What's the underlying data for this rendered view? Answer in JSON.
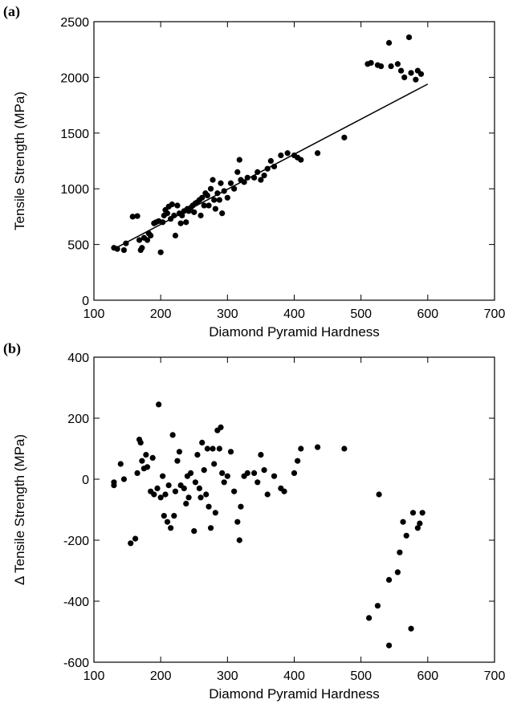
{
  "chart_data": [
    {
      "type": "scatter",
      "panel_label": "(a)",
      "xlabel": "Diamond Pyramid Hardness",
      "ylabel": "Tensile Strength (MPa)",
      "xlim": [
        100,
        700
      ],
      "xticks": [
        100,
        200,
        300,
        400,
        500,
        600,
        700
      ],
      "ylim": [
        0,
        2500
      ],
      "yticks": [
        0,
        500,
        1000,
        1500,
        2000,
        2500
      ],
      "series": [
        {
          "color": "#000000",
          "x": [
            130,
            135,
            145,
            148,
            158,
            165,
            168,
            170,
            172,
            175,
            180,
            182,
            185,
            190,
            193,
            197,
            200,
            203,
            205,
            207,
            210,
            212,
            215,
            217,
            220,
            222,
            225,
            228,
            230,
            232,
            235,
            238,
            240,
            242,
            245,
            248,
            250,
            252,
            255,
            258,
            260,
            262,
            265,
            267,
            270,
            272,
            275,
            278,
            280,
            282,
            285,
            288,
            290,
            292,
            295,
            300,
            305,
            310,
            315,
            318,
            320,
            325,
            330,
            340,
            345,
            350,
            355,
            360,
            365,
            370,
            380,
            390,
            400,
            405,
            410,
            435,
            475,
            510,
            515,
            525,
            530,
            542,
            545,
            555,
            560,
            565,
            572,
            575,
            582,
            585,
            590
          ],
          "values": [
            470,
            460,
            450,
            510,
            750,
            755,
            540,
            450,
            470,
            560,
            540,
            600,
            580,
            690,
            700,
            710,
            430,
            700,
            760,
            810,
            780,
            840,
            730,
            860,
            760,
            580,
            850,
            780,
            690,
            760,
            800,
            700,
            820,
            800,
            830,
            850,
            790,
            870,
            880,
            900,
            760,
            920,
            850,
            960,
            940,
            850,
            1000,
            1080,
            900,
            820,
            960,
            900,
            1050,
            780,
            980,
            920,
            1050,
            1000,
            1150,
            1260,
            1080,
            1060,
            1100,
            1100,
            1150,
            1080,
            1120,
            1180,
            1250,
            1200,
            1300,
            1320,
            1300,
            1280,
            1260,
            1320,
            1460,
            2120,
            2130,
            2110,
            2100,
            2310,
            2100,
            2120,
            2060,
            2000,
            2360,
            2040,
            1980,
            2060,
            2030
          ]
        }
      ],
      "fit_line": {
        "color": "#000000",
        "x": [
          130,
          600
        ],
        "values": [
          460,
          1940
        ]
      }
    },
    {
      "type": "scatter",
      "panel_label": "(b)",
      "xlabel": "Diamond Pyramid Hardness",
      "ylabel": "Δ Tensile Strength (MPa)",
      "xlim": [
        100,
        700
      ],
      "xticks": [
        100,
        200,
        300,
        400,
        500,
        600,
        700
      ],
      "ylim": [
        -600,
        400
      ],
      "yticks": [
        -600,
        -400,
        -200,
        0,
        200,
        400
      ],
      "series": [
        {
          "color": "#000000",
          "x": [
            130,
            130,
            140,
            145,
            155,
            162,
            165,
            168,
            170,
            172,
            175,
            178,
            180,
            185,
            188,
            190,
            195,
            197,
            200,
            203,
            205,
            207,
            210,
            212,
            215,
            218,
            220,
            222,
            225,
            228,
            230,
            235,
            238,
            240,
            242,
            245,
            250,
            252,
            255,
            258,
            260,
            262,
            265,
            268,
            270,
            272,
            275,
            278,
            280,
            282,
            285,
            288,
            290,
            292,
            295,
            300,
            305,
            310,
            315,
            318,
            320,
            325,
            330,
            340,
            345,
            350,
            355,
            360,
            370,
            380,
            385,
            400,
            405,
            410,
            435,
            475,
            512,
            525,
            527,
            542,
            542,
            555,
            558,
            563,
            568,
            575,
            578,
            585,
            588,
            592
          ],
          "values": [
            -20,
            -10,
            50,
            0,
            -210,
            -195,
            20,
            130,
            120,
            60,
            35,
            80,
            40,
            -40,
            70,
            -50,
            -30,
            245,
            -60,
            10,
            -120,
            -50,
            -140,
            -20,
            -160,
            145,
            -120,
            -40,
            60,
            90,
            -20,
            -30,
            -80,
            10,
            -60,
            20,
            -170,
            -10,
            80,
            -30,
            -60,
            120,
            30,
            -50,
            100,
            -90,
            -160,
            100,
            50,
            -110,
            160,
            100,
            170,
            20,
            -10,
            10,
            90,
            -40,
            -140,
            -200,
            -90,
            10,
            20,
            20,
            -10,
            80,
            30,
            -50,
            10,
            -30,
            -40,
            20,
            60,
            100,
            105,
            100,
            -455,
            -415,
            -50,
            -330,
            -545,
            -305,
            -240,
            -140,
            -185,
            -490,
            -110,
            -160,
            -145,
            -110
          ]
        }
      ]
    }
  ]
}
